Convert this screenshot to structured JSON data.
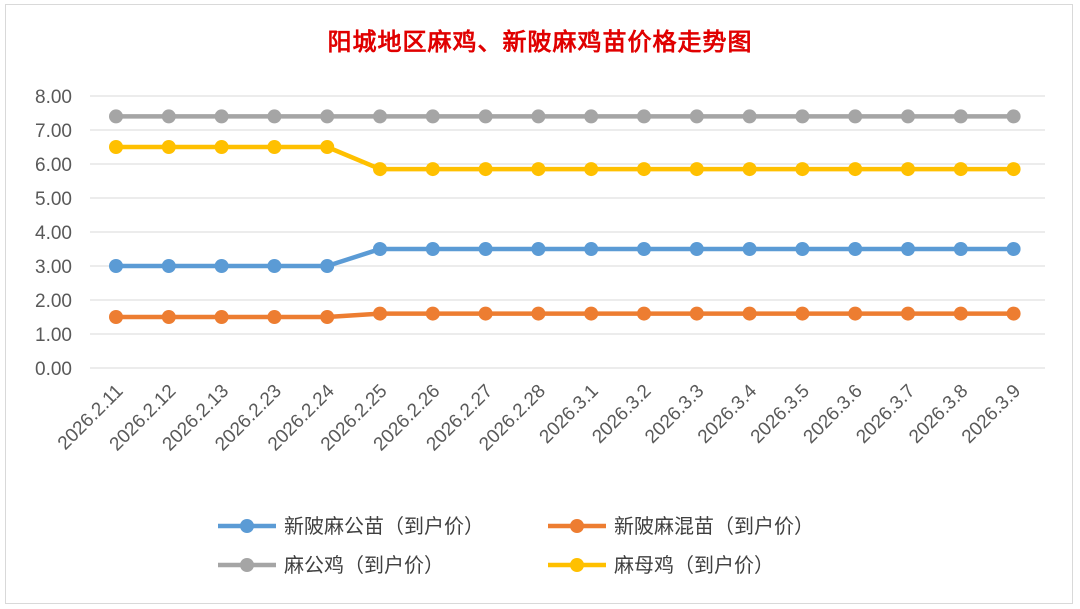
{
  "chart_data": {
    "type": "line",
    "title": "阳城地区麻鸡、新陂麻鸡苗价格走势图",
    "categories": [
      "2026.2.11",
      "2026.2.12",
      "2026.2.13",
      "2026.2.23",
      "2026.2.24",
      "2026.2.25",
      "2026.2.26",
      "2026.2.27",
      "2026.2.28",
      "2026.3.1",
      "2026.3.2",
      "2026.3.3",
      "2026.3.4",
      "2026.3.5",
      "2026.3.6",
      "2026.3.7",
      "2026.3.8",
      "2026.3.9"
    ],
    "ylim": [
      0,
      8
    ],
    "yticks": [
      "0.00",
      "1.00",
      "2.00",
      "3.00",
      "4.00",
      "5.00",
      "6.00",
      "7.00",
      "8.00"
    ],
    "grid": true,
    "legend_position": "bottom",
    "series": [
      {
        "name": "新陂麻公苗（到户价）",
        "color": "#5b9bd5",
        "values": [
          3.0,
          3.0,
          3.0,
          3.0,
          3.0,
          3.5,
          3.5,
          3.5,
          3.5,
          3.5,
          3.5,
          3.5,
          3.5,
          3.5,
          3.5,
          3.5,
          3.5,
          3.5
        ]
      },
      {
        "name": "新陂麻混苗（到户价）",
        "color": "#ed7d31",
        "values": [
          1.5,
          1.5,
          1.5,
          1.5,
          1.5,
          1.6,
          1.6,
          1.6,
          1.6,
          1.6,
          1.6,
          1.6,
          1.6,
          1.6,
          1.6,
          1.6,
          1.6,
          1.6
        ]
      },
      {
        "name": "麻公鸡（到户价）",
        "color": "#a5a5a5",
        "values": [
          7.4,
          7.4,
          7.4,
          7.4,
          7.4,
          7.4,
          7.4,
          7.4,
          7.4,
          7.4,
          7.4,
          7.4,
          7.4,
          7.4,
          7.4,
          7.4,
          7.4,
          7.4
        ]
      },
      {
        "name": "麻母鸡（到户价）",
        "color": "#ffc000",
        "values": [
          6.5,
          6.5,
          6.5,
          6.5,
          6.5,
          5.85,
          5.85,
          5.85,
          5.85,
          5.85,
          5.85,
          5.85,
          5.85,
          5.85,
          5.85,
          5.85,
          5.85,
          5.85
        ]
      }
    ]
  }
}
